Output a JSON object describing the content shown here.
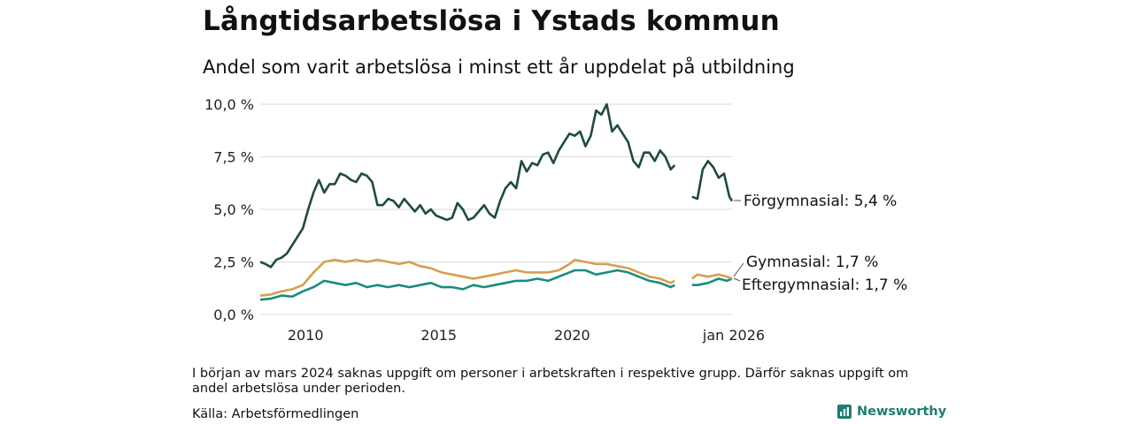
{
  "header": {
    "title": "Långtidsarbetslösa i Ystads kommun",
    "subtitle": "Andel som varit arbetslösa i minst ett år uppdelat på utbildning"
  },
  "footer": {
    "note": "I början av mars 2024 saknas uppgift om personer i arbetskraften i respektive grupp. Därför saknas uppgift om andel arbetslösa under perioden.",
    "source": "Källa: Arbetsförmedlingen",
    "brand": "Newsworthy",
    "brand_icon": "bar-chart-logo-icon"
  },
  "colors": {
    "forgymnasial": "#1f4a42",
    "gymnasial": "#d4a04f",
    "eftergymnasial": "#1a8b7f",
    "grid": "#d9d9d9",
    "brand": "#1e7d73"
  },
  "chart_data": {
    "type": "line",
    "title": "Långtidsarbetslösa i Ystads kommun",
    "subtitle": "Andel som varit arbetslösa i minst ett år uppdelat på utbildning",
    "xlabel": "",
    "ylabel": "",
    "x_ticks": [
      "2010",
      "2015",
      "2020",
      "jan 2026"
    ],
    "x_tick_values": [
      2010.0,
      2015.0,
      2020.0,
      2026.0
    ],
    "xlim": [
      2008.3,
      2026.0
    ],
    "y_ticks": [
      "0,0 %",
      "2,5 %",
      "5,0 %",
      "7,5 %",
      "10,0 %"
    ],
    "y_tick_values": [
      0,
      2.5,
      5.0,
      7.5,
      10.0
    ],
    "ylim": [
      0,
      10
    ],
    "grid": true,
    "gap": [
      2024.1,
      2024.5
    ],
    "series": [
      {
        "name": "Förgymnasial",
        "end_label": "Förgymnasial: 5,4 %",
        "color": "#1f4a42",
        "points": [
          [
            2008.3,
            2.5
          ],
          [
            2008.5,
            2.4
          ],
          [
            2008.7,
            2.25
          ],
          [
            2008.9,
            2.6
          ],
          [
            2009.1,
            2.7
          ],
          [
            2009.3,
            2.9
          ],
          [
            2009.5,
            3.3
          ],
          [
            2009.7,
            3.7
          ],
          [
            2009.9,
            4.1
          ],
          [
            2010.1,
            5.0
          ],
          [
            2010.3,
            5.8
          ],
          [
            2010.5,
            6.4
          ],
          [
            2010.7,
            5.8
          ],
          [
            2010.9,
            6.2
          ],
          [
            2011.1,
            6.2
          ],
          [
            2011.3,
            6.7
          ],
          [
            2011.5,
            6.6
          ],
          [
            2011.7,
            6.4
          ],
          [
            2011.9,
            6.3
          ],
          [
            2012.1,
            6.7
          ],
          [
            2012.3,
            6.6
          ],
          [
            2012.5,
            6.3
          ],
          [
            2012.7,
            5.2
          ],
          [
            2012.9,
            5.2
          ],
          [
            2013.1,
            5.5
          ],
          [
            2013.3,
            5.4
          ],
          [
            2013.5,
            5.1
          ],
          [
            2013.7,
            5.5
          ],
          [
            2013.9,
            5.2
          ],
          [
            2014.1,
            4.9
          ],
          [
            2014.3,
            5.2
          ],
          [
            2014.5,
            4.8
          ],
          [
            2014.7,
            5.0
          ],
          [
            2014.9,
            4.7
          ],
          [
            2015.1,
            4.6
          ],
          [
            2015.3,
            4.5
          ],
          [
            2015.5,
            4.6
          ],
          [
            2015.7,
            5.3
          ],
          [
            2015.9,
            5.0
          ],
          [
            2016.1,
            4.5
          ],
          [
            2016.3,
            4.6
          ],
          [
            2016.5,
            4.9
          ],
          [
            2016.7,
            5.2
          ],
          [
            2016.9,
            4.8
          ],
          [
            2017.1,
            4.6
          ],
          [
            2017.3,
            5.4
          ],
          [
            2017.5,
            6.0
          ],
          [
            2017.7,
            6.3
          ],
          [
            2017.9,
            6.0
          ],
          [
            2018.1,
            7.3
          ],
          [
            2018.3,
            6.8
          ],
          [
            2018.5,
            7.2
          ],
          [
            2018.7,
            7.1
          ],
          [
            2018.9,
            7.6
          ],
          [
            2019.1,
            7.7
          ],
          [
            2019.3,
            7.2
          ],
          [
            2019.5,
            7.8
          ],
          [
            2019.7,
            8.2
          ],
          [
            2019.9,
            8.6
          ],
          [
            2020.1,
            8.5
          ],
          [
            2020.3,
            8.7
          ],
          [
            2020.5,
            8.0
          ],
          [
            2020.7,
            8.5
          ],
          [
            2020.9,
            9.7
          ],
          [
            2021.1,
            9.5
          ],
          [
            2021.3,
            10.0
          ],
          [
            2021.5,
            8.7
          ],
          [
            2021.7,
            9.0
          ],
          [
            2021.9,
            8.6
          ],
          [
            2022.1,
            8.2
          ],
          [
            2022.3,
            7.3
          ],
          [
            2022.5,
            7.0
          ],
          [
            2022.7,
            7.7
          ],
          [
            2022.9,
            7.7
          ],
          [
            2023.1,
            7.3
          ],
          [
            2023.3,
            7.8
          ],
          [
            2023.5,
            7.5
          ],
          [
            2023.7,
            6.9
          ],
          [
            2023.85,
            7.1
          ],
          [
            2024.5,
            5.6
          ],
          [
            2024.7,
            5.5
          ],
          [
            2024.9,
            6.9
          ],
          [
            2025.1,
            7.3
          ],
          [
            2025.3,
            7.0
          ],
          [
            2025.5,
            6.5
          ],
          [
            2025.7,
            6.7
          ],
          [
            2025.9,
            5.6
          ],
          [
            2026.0,
            5.4
          ]
        ]
      },
      {
        "name": "Gymnasial",
        "end_label": "Gymnasial: 1,7 %",
        "color": "#d4a04f",
        "points": [
          [
            2008.3,
            0.9
          ],
          [
            2008.7,
            0.95
          ],
          [
            2009.1,
            1.1
          ],
          [
            2009.5,
            1.2
          ],
          [
            2009.9,
            1.4
          ],
          [
            2010.3,
            2.0
          ],
          [
            2010.7,
            2.5
          ],
          [
            2011.1,
            2.6
          ],
          [
            2011.5,
            2.5
          ],
          [
            2011.9,
            2.6
          ],
          [
            2012.3,
            2.5
          ],
          [
            2012.7,
            2.6
          ],
          [
            2013.1,
            2.5
          ],
          [
            2013.5,
            2.4
          ],
          [
            2013.9,
            2.5
          ],
          [
            2014.3,
            2.3
          ],
          [
            2014.7,
            2.2
          ],
          [
            2015.1,
            2.0
          ],
          [
            2015.5,
            1.9
          ],
          [
            2015.9,
            1.8
          ],
          [
            2016.3,
            1.7
          ],
          [
            2016.7,
            1.8
          ],
          [
            2017.1,
            1.9
          ],
          [
            2017.5,
            2.0
          ],
          [
            2017.9,
            2.1
          ],
          [
            2018.3,
            2.0
          ],
          [
            2018.7,
            2.0
          ],
          [
            2019.1,
            2.0
          ],
          [
            2019.5,
            2.1
          ],
          [
            2019.9,
            2.4
          ],
          [
            2020.1,
            2.6
          ],
          [
            2020.5,
            2.5
          ],
          [
            2020.9,
            2.4
          ],
          [
            2021.3,
            2.4
          ],
          [
            2021.7,
            2.3
          ],
          [
            2022.1,
            2.2
          ],
          [
            2022.5,
            2.0
          ],
          [
            2022.9,
            1.8
          ],
          [
            2023.3,
            1.7
          ],
          [
            2023.7,
            1.5
          ],
          [
            2023.85,
            1.6
          ],
          [
            2024.5,
            1.7
          ],
          [
            2024.7,
            1.9
          ],
          [
            2025.1,
            1.8
          ],
          [
            2025.5,
            1.9
          ],
          [
            2025.8,
            1.8
          ],
          [
            2026.0,
            1.7
          ]
        ]
      },
      {
        "name": "Eftergymnasial",
        "end_label": "Eftergymnasial: 1,7 %",
        "color": "#1a8b7f",
        "points": [
          [
            2008.3,
            0.7
          ],
          [
            2008.7,
            0.75
          ],
          [
            2009.1,
            0.9
          ],
          [
            2009.5,
            0.85
          ],
          [
            2009.9,
            1.1
          ],
          [
            2010.3,
            1.3
          ],
          [
            2010.7,
            1.6
          ],
          [
            2011.1,
            1.5
          ],
          [
            2011.5,
            1.4
          ],
          [
            2011.9,
            1.5
          ],
          [
            2012.3,
            1.3
          ],
          [
            2012.7,
            1.4
          ],
          [
            2013.1,
            1.3
          ],
          [
            2013.5,
            1.4
          ],
          [
            2013.9,
            1.3
          ],
          [
            2014.3,
            1.4
          ],
          [
            2014.7,
            1.5
          ],
          [
            2015.1,
            1.3
          ],
          [
            2015.5,
            1.3
          ],
          [
            2015.9,
            1.2
          ],
          [
            2016.3,
            1.4
          ],
          [
            2016.7,
            1.3
          ],
          [
            2017.1,
            1.4
          ],
          [
            2017.5,
            1.5
          ],
          [
            2017.9,
            1.6
          ],
          [
            2018.3,
            1.6
          ],
          [
            2018.7,
            1.7
          ],
          [
            2019.1,
            1.6
          ],
          [
            2019.5,
            1.8
          ],
          [
            2019.9,
            2.0
          ],
          [
            2020.1,
            2.1
          ],
          [
            2020.5,
            2.1
          ],
          [
            2020.9,
            1.9
          ],
          [
            2021.3,
            2.0
          ],
          [
            2021.7,
            2.1
          ],
          [
            2022.1,
            2.0
          ],
          [
            2022.5,
            1.8
          ],
          [
            2022.9,
            1.6
          ],
          [
            2023.3,
            1.5
          ],
          [
            2023.7,
            1.3
          ],
          [
            2023.85,
            1.4
          ],
          [
            2024.5,
            1.4
          ],
          [
            2024.7,
            1.4
          ],
          [
            2025.1,
            1.5
          ],
          [
            2025.5,
            1.7
          ],
          [
            2025.8,
            1.6
          ],
          [
            2026.0,
            1.7
          ]
        ]
      }
    ]
  }
}
